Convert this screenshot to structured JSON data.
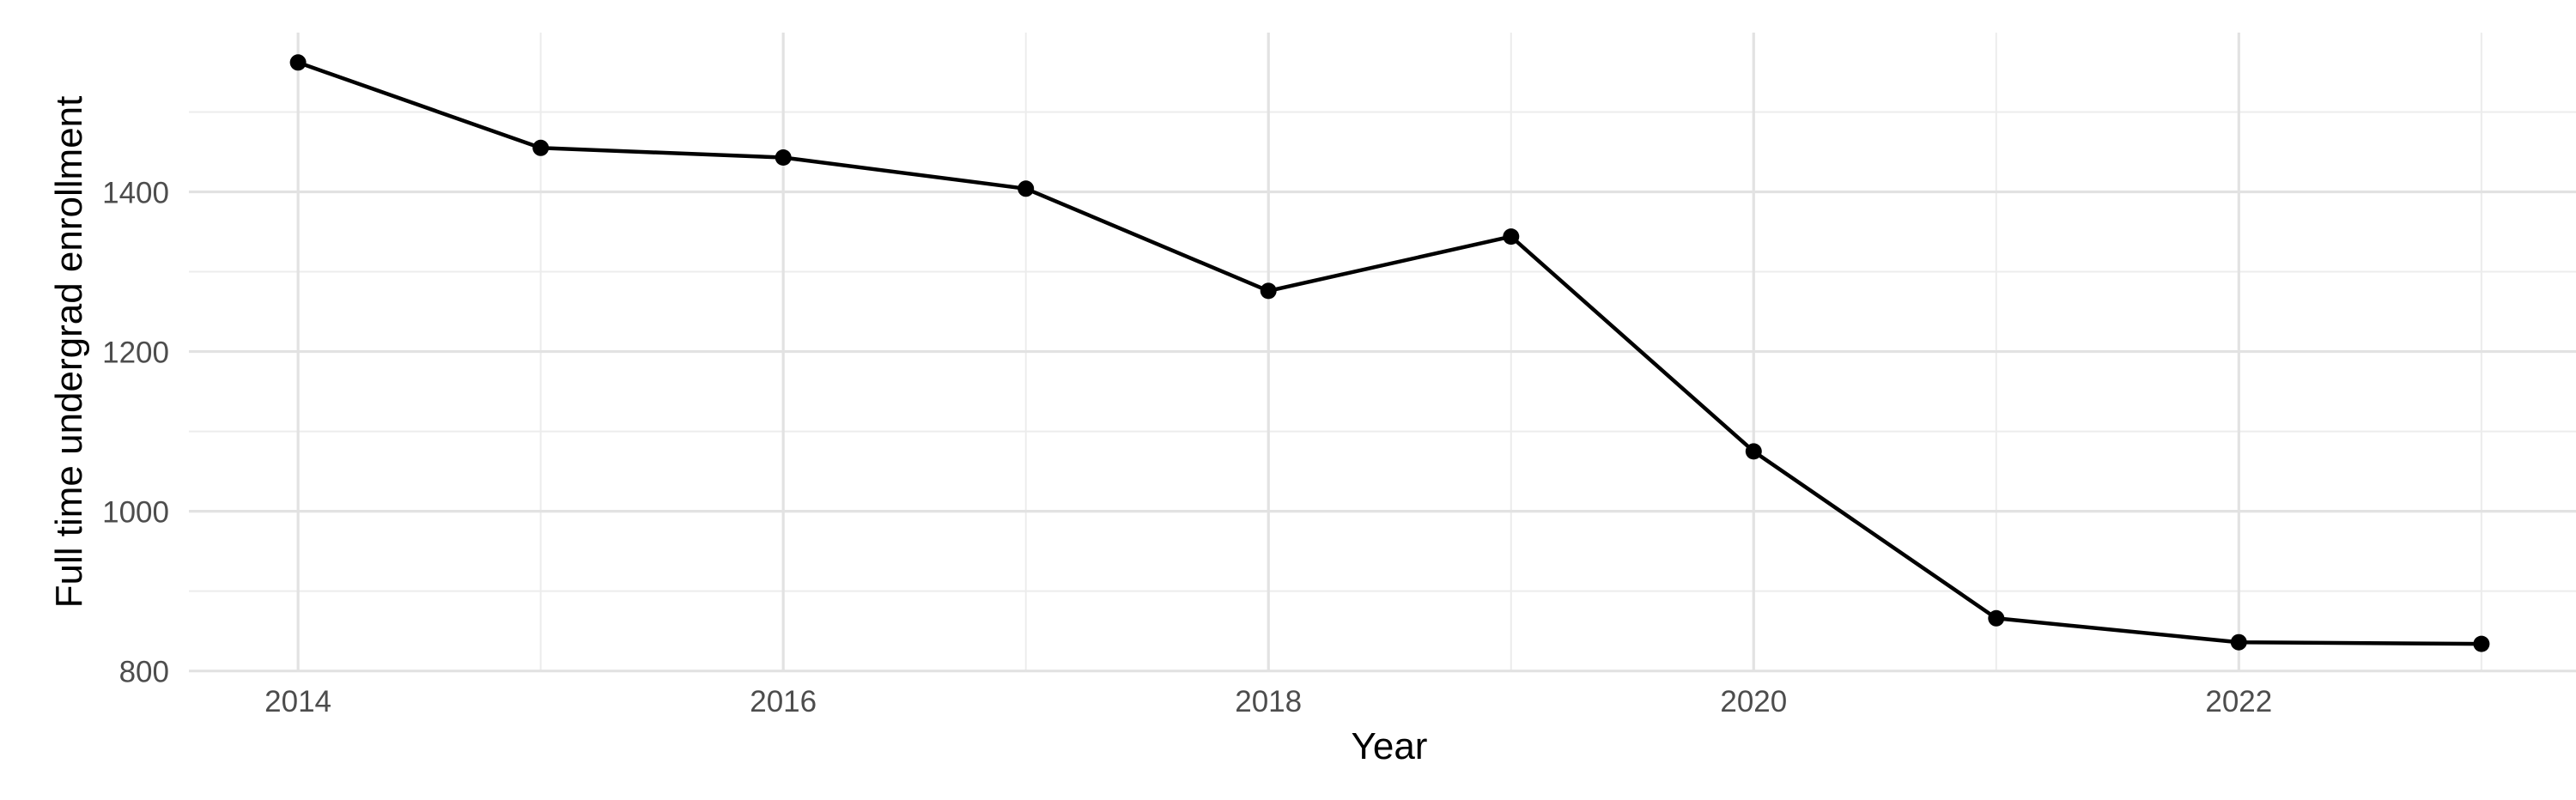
{
  "chart_data": {
    "type": "line",
    "title": "",
    "xlabel": "Year",
    "ylabel": "Full time undergrad enrollment",
    "x": [
      2014,
      2015,
      2016,
      2017,
      2018,
      2019,
      2020,
      2021,
      2022,
      2023
    ],
    "values": [
      1562,
      1455,
      1443,
      1404,
      1276,
      1344,
      1075,
      866,
      836,
      834
    ],
    "series_name": "Full time undergrad enrollment by year",
    "xlim": [
      2013.55,
      2023.45
    ],
    "ylim": [
      798.6,
      1599.4
    ],
    "x_major_breaks": [
      2014,
      2016,
      2018,
      2020,
      2022
    ],
    "x_minor_breaks": [
      2015,
      2017,
      2019,
      2021,
      2023
    ],
    "y_major_breaks": [
      800,
      1000,
      1200,
      1400
    ],
    "y_minor_breaks": [
      900,
      1100,
      1300,
      1500
    ],
    "x_tick_labels": [
      "2014",
      "2016",
      "2018",
      "2020",
      "2022"
    ],
    "y_tick_labels": [
      "800",
      "1000",
      "1200",
      "1400"
    ],
    "grid": "on",
    "legend": "none",
    "colors": {
      "line": "#000000",
      "point": "#000000",
      "grid_major": "#E2E2E2",
      "grid_minor": "#ECECEC",
      "axis_text": "#4D4D4D",
      "axis_title": "#000000",
      "background": "#FFFFFF"
    }
  }
}
